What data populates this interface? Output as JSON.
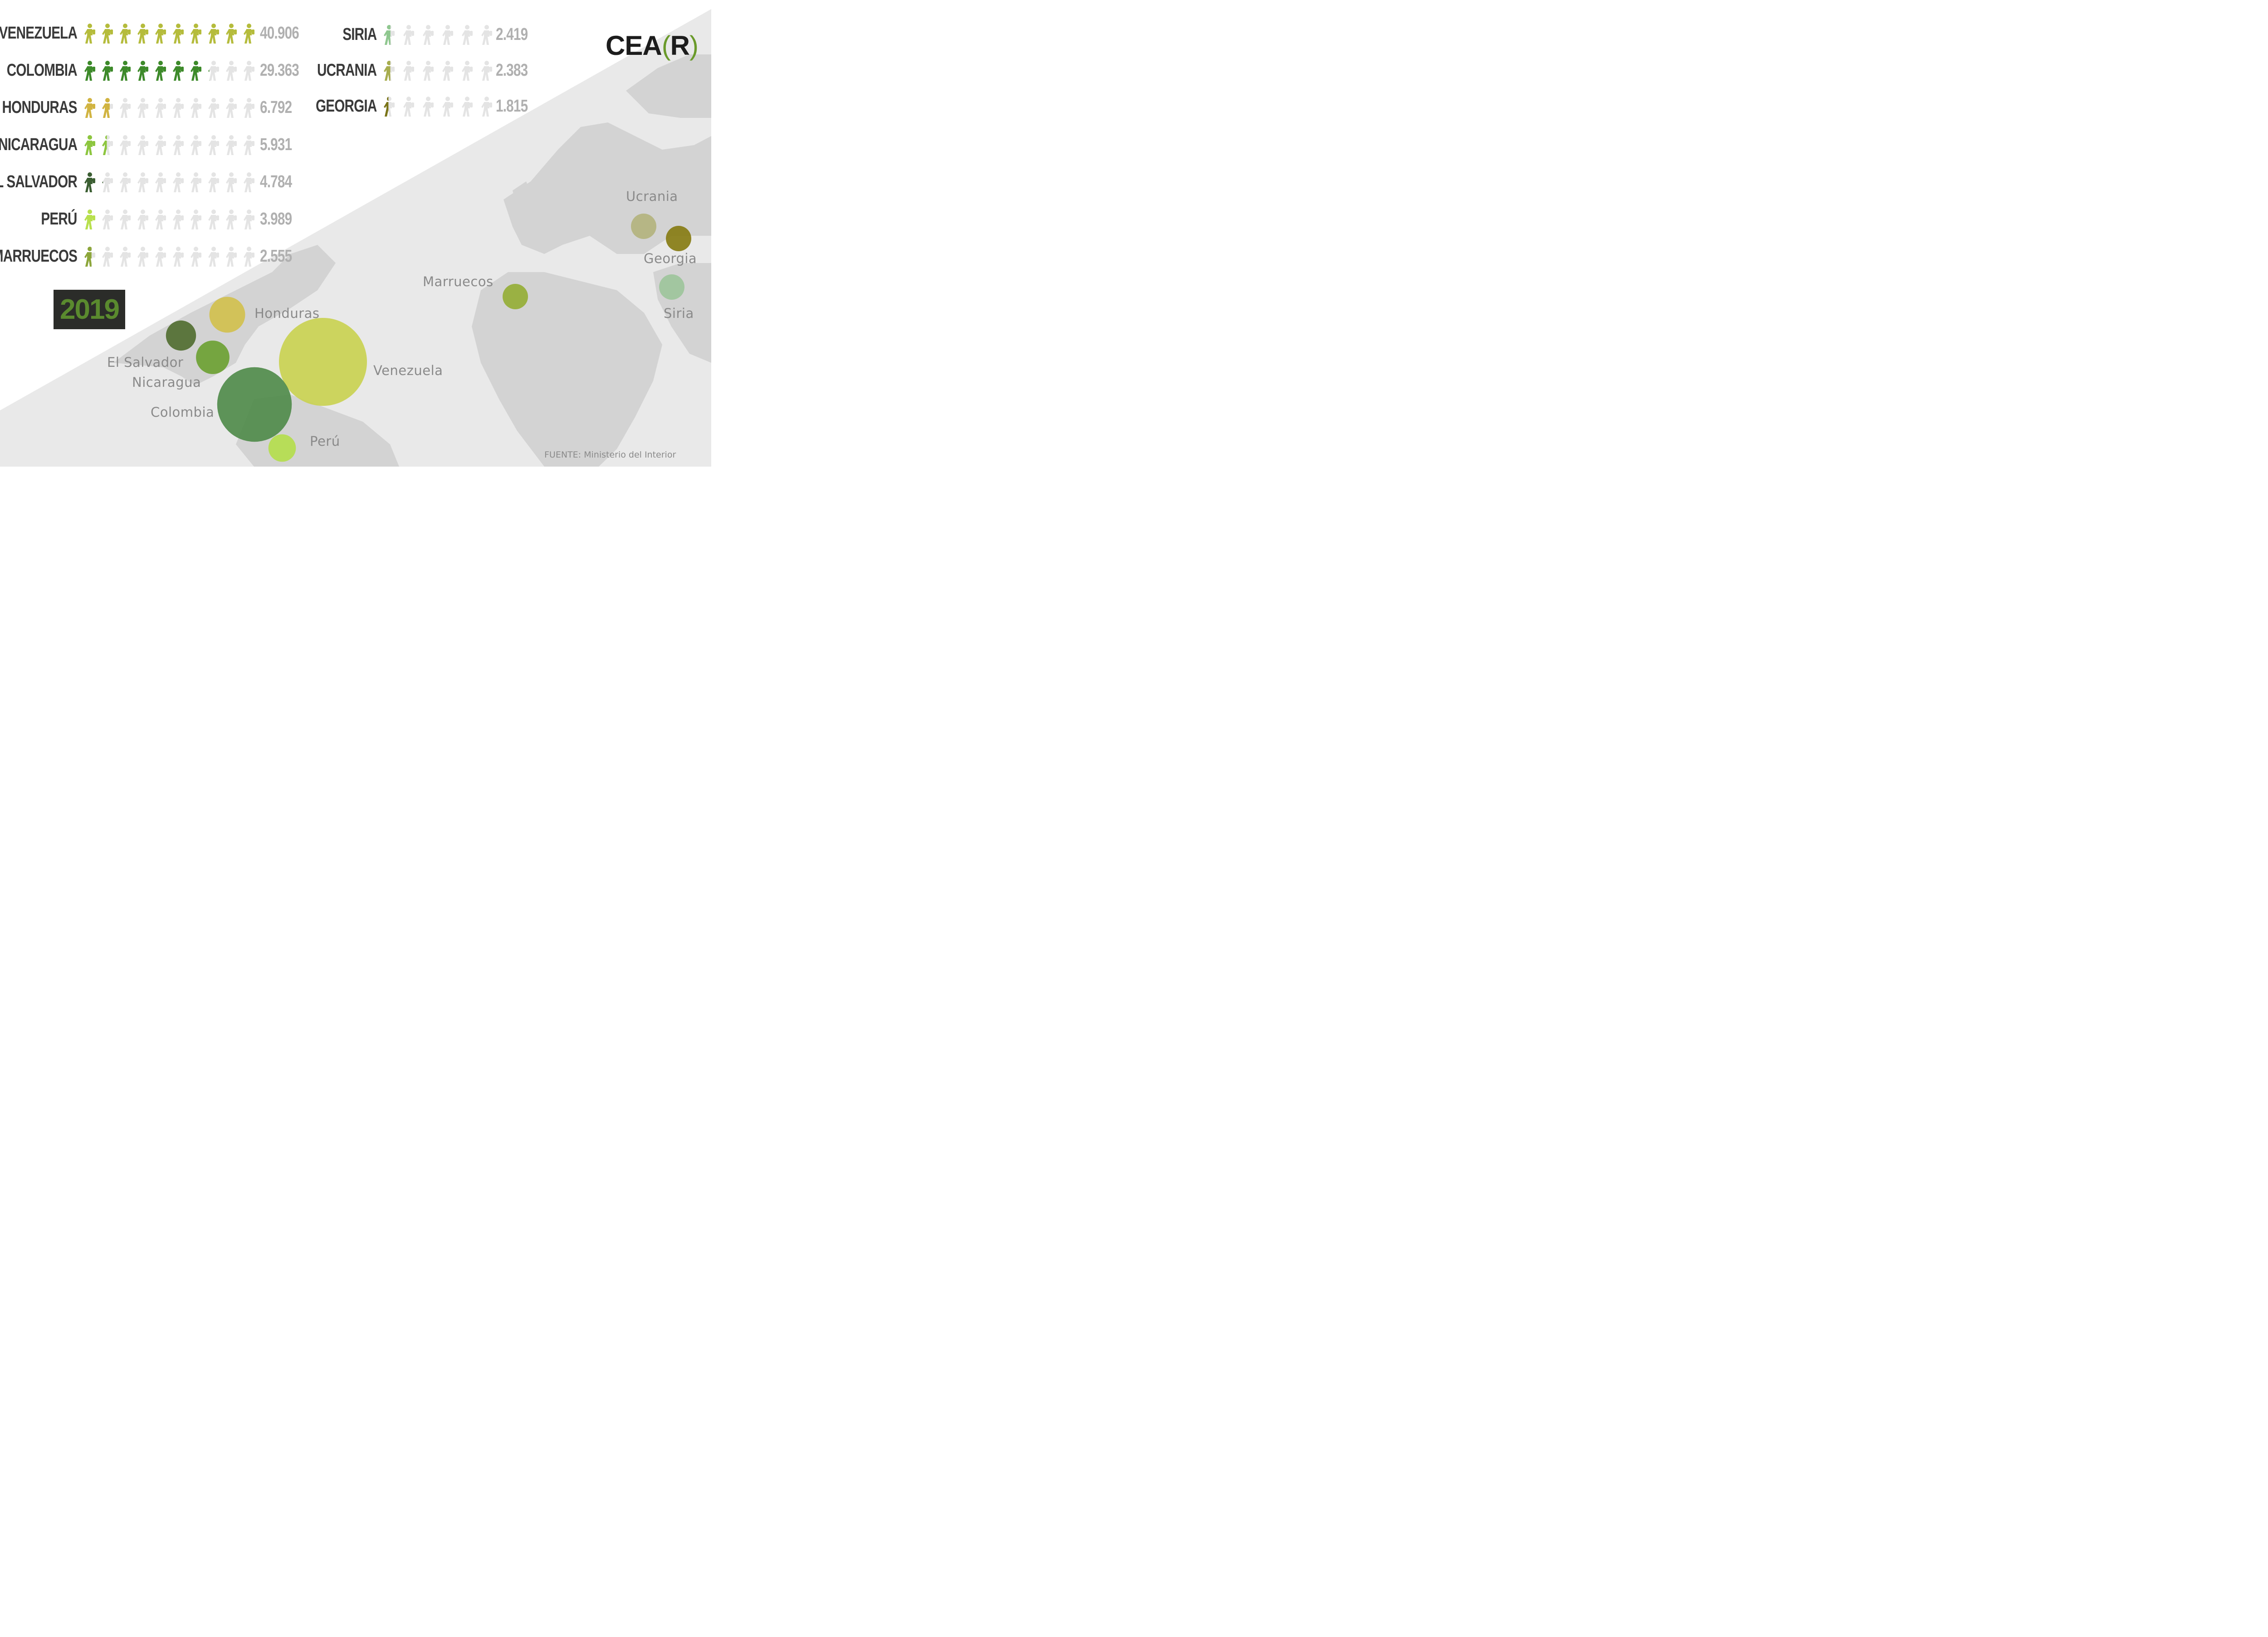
{
  "logo": {
    "text_left": "CEA",
    "bracket_open": "(",
    "letter": "R",
    "bracket_close": ")"
  },
  "year": "2019",
  "source": "FUENTE: Ministerio del Interior",
  "colors": {
    "empty_icon": "#e4e4e4",
    "background_white": "#ffffff",
    "map_land": "#cfcfcf",
    "map_sea": "#e9e9e9"
  },
  "chart_data": {
    "type": "pictogram",
    "unit_note_visible": false,
    "icons_per_row": 10,
    "max_value": 40906,
    "rows": [
      {
        "country": "VENEZUELA",
        "value": 40906,
        "label": "40.906",
        "color": "#b5bc3c"
      },
      {
        "country": "COLOMBIA",
        "value": 29363,
        "label": "29.363",
        "color": "#3d8a2a"
      },
      {
        "country": "HONDURAS",
        "value": 6792,
        "label": "6.792",
        "color": "#d1b441"
      },
      {
        "country": "NICARAGUA",
        "value": 5931,
        "label": "5.931",
        "color": "#8dc63f"
      },
      {
        "country": "EL SALVADOR",
        "value": 4784,
        "label": "4.784",
        "color": "#3b5e32"
      },
      {
        "country": "PERÚ",
        "value": 3989,
        "label": "3.989",
        "color": "#b8e04d"
      },
      {
        "country": "MARRUECOS",
        "value": 2555,
        "label": "2.555",
        "color": "#8ca63a"
      },
      {
        "country": "SIRIA",
        "value": 2419,
        "label": "2.419",
        "color": "#8fc78f"
      },
      {
        "country": "UCRANIA",
        "value": 2383,
        "label": "2.383",
        "color": "#a7ad4e"
      },
      {
        "country": "GEORGIA",
        "value": 1815,
        "label": "1.815",
        "color": "#7a7418"
      }
    ],
    "bubbles": [
      {
        "name": "Venezuela",
        "value": 40906,
        "color": "#c9d14f"
      },
      {
        "name": "Colombia",
        "value": 29363,
        "color": "#4e8a48"
      },
      {
        "name": "Honduras",
        "value": 6792,
        "color": "#d2c04b"
      },
      {
        "name": "Nicaragua",
        "value": 5931,
        "color": "#6aa030"
      },
      {
        "name": "El Salvador",
        "value": 4784,
        "color": "#4f6b2e"
      },
      {
        "name": "Perú",
        "value": 3989,
        "color": "#b4de4a"
      },
      {
        "name": "Marruecos",
        "value": 2555,
        "color": "#93ad33"
      },
      {
        "name": "Siria",
        "value": 2419,
        "color": "#9cc49a"
      },
      {
        "name": "Ucrania",
        "value": 2383,
        "color": "#b3b37c"
      },
      {
        "name": "Georgia",
        "value": 1815,
        "color": "#857a10"
      }
    ]
  }
}
